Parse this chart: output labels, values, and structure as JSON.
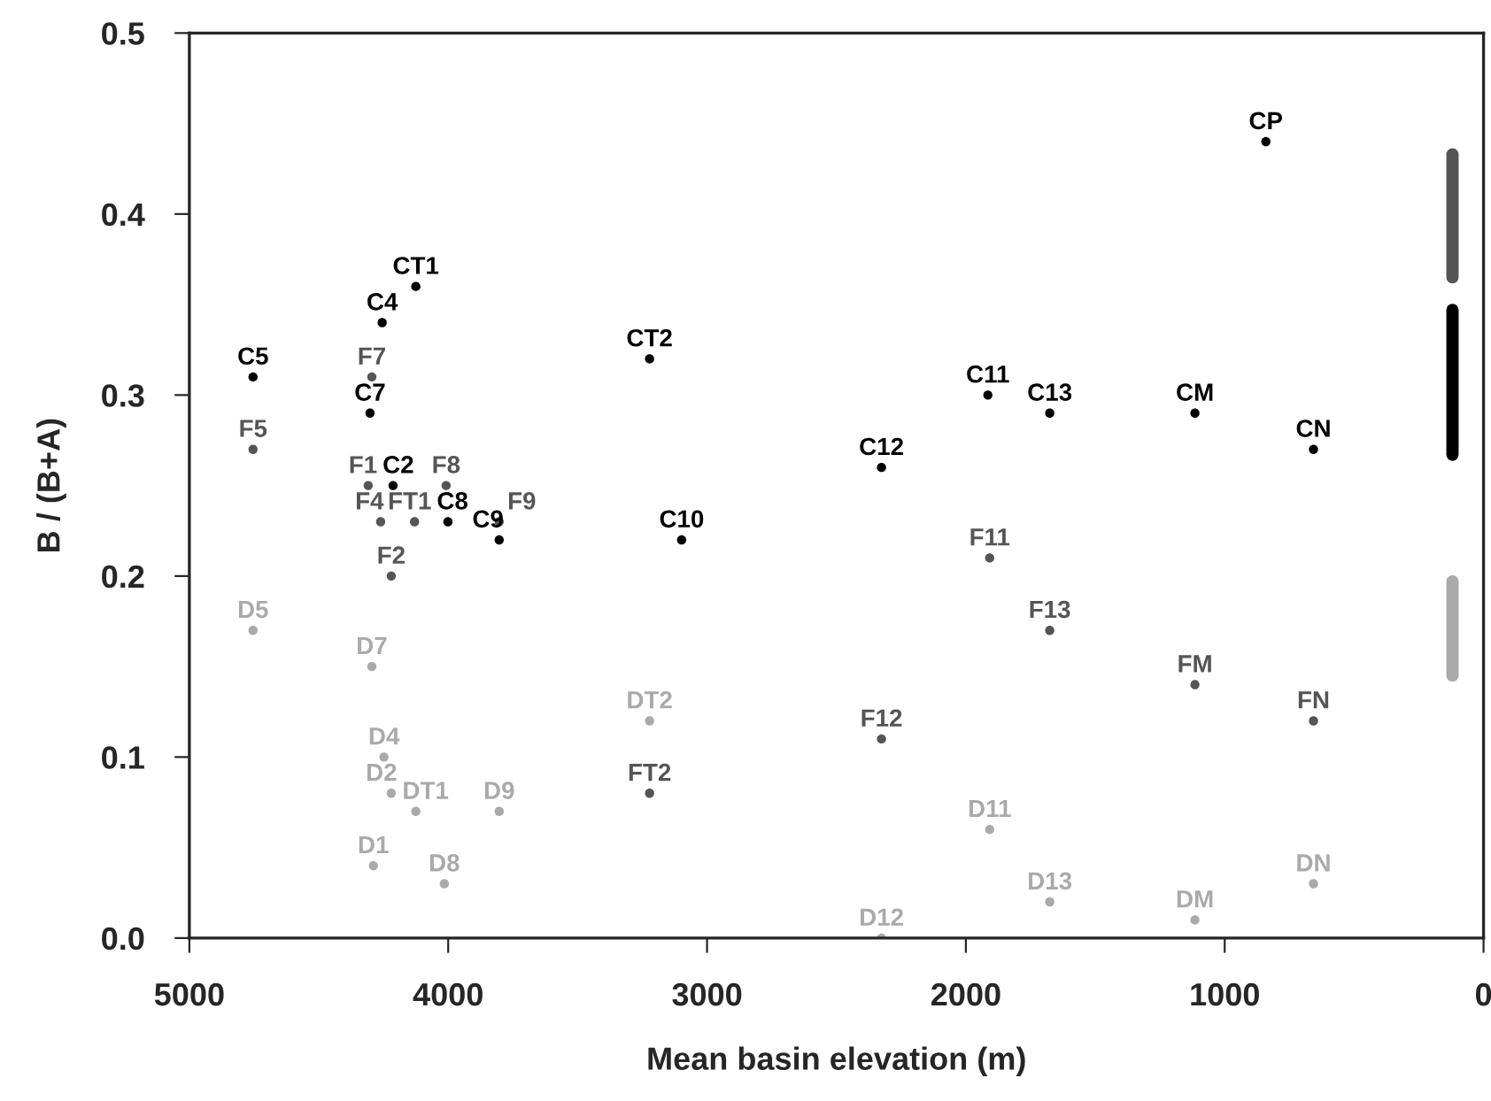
{
  "chart_data": {
    "type": "scatter",
    "xlabel": "Mean basin elevation (m)",
    "ylabel": "B / (B+A)",
    "xlim": [
      5000,
      0
    ],
    "xticks": [
      5000,
      4000,
      3000,
      2000,
      1000,
      0
    ],
    "ylim": [
      0,
      0.5
    ],
    "yticks": [
      {
        "value": 0,
        "label": "0.0"
      },
      0.1,
      0.2,
      0.3,
      0.4,
      0.5
    ],
    "grid": false,
    "marker": "circle",
    "series": [
      {
        "color": "#000000",
        "x": [
          4125,
          4255,
          4754,
          4302,
          4213,
          4001,
          3803,
          3098,
          3222,
          2326,
          1915,
          1676,
          1115,
          657,
          841
        ],
        "values": [
          0.36,
          0.34,
          0.31,
          0.29,
          0.25,
          0.23,
          0.22,
          0.22,
          0.32,
          0.26,
          0.3,
          0.29,
          0.29,
          0.27,
          0.44
        ],
        "value_labels": [
          "CT1",
          "C4",
          "C5",
          "C7",
          "C2",
          "C8",
          "C9",
          "C10",
          "CT2",
          "C12",
          "C11",
          "C13",
          "CM",
          "CN",
          "CP"
        ]
      },
      {
        "color": "#555555",
        "x": [
          4295,
          4754,
          4309,
          4008,
          4261,
          4130,
          3803,
          4220,
          1908,
          1676,
          1115,
          657,
          2326,
          3222
        ],
        "values": [
          0.31,
          0.27,
          0.25,
          0.25,
          0.23,
          0.23,
          0.23,
          0.2,
          0.21,
          0.17,
          0.14,
          0.12,
          0.11,
          0.08
        ],
        "value_labels": [
          "F7",
          "F5",
          "F1",
          "F8",
          "F4",
          "FT1",
          "F9",
          "F2",
          "F11",
          "F13",
          "FM",
          "FN",
          "F12",
          "FT2"
        ]
      },
      {
        "color": "#aaaaaa",
        "x": [
          4754,
          4295,
          3222,
          4248,
          4220,
          4125,
          3803,
          4289,
          4015,
          1908,
          1676,
          1115,
          657,
          2326
        ],
        "values": [
          0.17,
          0.15,
          0.12,
          0.1,
          0.08,
          0.07,
          0.07,
          0.04,
          0.03,
          0.06,
          0.02,
          0.01,
          0.03,
          0.0
        ],
        "value_labels": [
          "D5",
          "D7",
          "DT2",
          "D4",
          "D2",
          "DT1",
          "D9",
          "D1",
          "D8",
          "D11",
          "D13",
          "DM",
          "DN",
          "D12"
        ]
      },
      {
        "type": "line",
        "marker": "none",
        "color": "#555555",
        "x": [
          120,
          120
        ],
        "values": [
          0.365,
          0.433
        ]
      },
      {
        "type": "line",
        "marker": "none",
        "color": "#000000",
        "x": [
          120,
          120
        ],
        "values": [
          0.267,
          0.347
        ]
      },
      {
        "type": "line",
        "marker": "none",
        "color": "#aaaaaa",
        "x": [
          120,
          120
        ],
        "values": [
          0.145,
          0.197
        ]
      }
    ]
  }
}
